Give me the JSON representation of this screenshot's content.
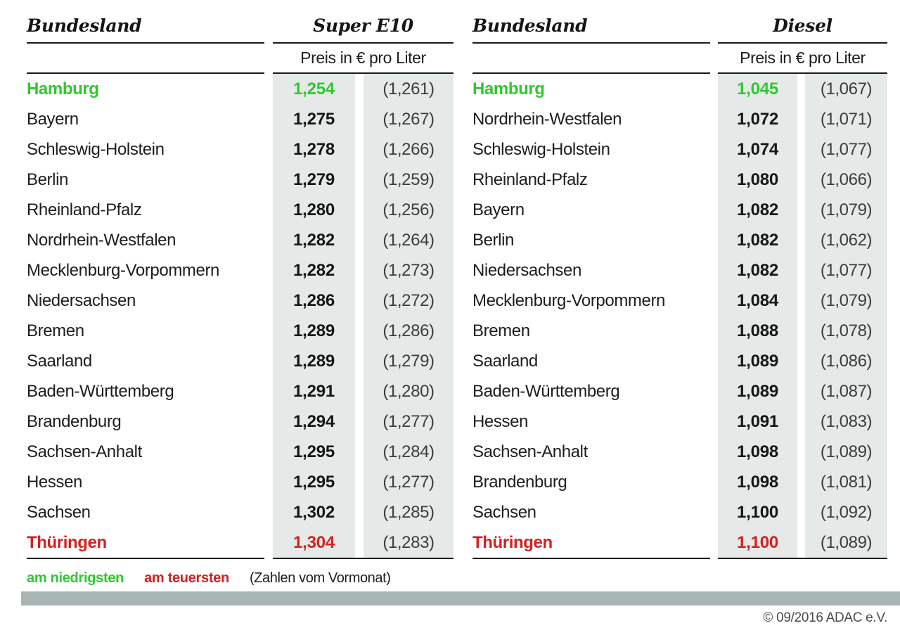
{
  "colors": {
    "green": "#2fc82f",
    "red": "#d32121",
    "band": "#e5eae8",
    "bar": "#a9b5b2",
    "text": "#1d1d1b"
  },
  "tables": [
    {
      "state_header": "Bundesland",
      "fuel_header": "Super E10",
      "unit_header": "Preis in € pro Liter",
      "rows": [
        {
          "state": "Hamburg",
          "price": "1,254",
          "prev": "(1,261)",
          "highlight": "lowest"
        },
        {
          "state": "Bayern",
          "price": "1,275",
          "prev": "(1,267)",
          "highlight": ""
        },
        {
          "state": "Schleswig-Holstein",
          "price": "1,278",
          "prev": "(1,266)",
          "highlight": ""
        },
        {
          "state": "Berlin",
          "price": "1,279",
          "prev": "(1,259)",
          "highlight": ""
        },
        {
          "state": "Rheinland-Pfalz",
          "price": "1,280",
          "prev": "(1,256)",
          "highlight": ""
        },
        {
          "state": "Nordrhein-Westfalen",
          "price": "1,282",
          "prev": "(1,264)",
          "highlight": ""
        },
        {
          "state": "Mecklenburg-Vorpommern",
          "price": "1,282",
          "prev": "(1,273)",
          "highlight": ""
        },
        {
          "state": "Niedersachsen",
          "price": "1,286",
          "prev": "(1,272)",
          "highlight": ""
        },
        {
          "state": "Bremen",
          "price": "1,289",
          "prev": "(1,286)",
          "highlight": ""
        },
        {
          "state": "Saarland",
          "price": "1,289",
          "prev": "(1,279)",
          "highlight": ""
        },
        {
          "state": "Baden-Württemberg",
          "price": "1,291",
          "prev": "(1,280)",
          "highlight": ""
        },
        {
          "state": "Brandenburg",
          "price": "1,294",
          "prev": "(1,277)",
          "highlight": ""
        },
        {
          "state": "Sachsen-Anhalt",
          "price": "1,295",
          "prev": "(1,284)",
          "highlight": ""
        },
        {
          "state": "Hessen",
          "price": "1,295",
          "prev": "(1,277)",
          "highlight": ""
        },
        {
          "state": "Sachsen",
          "price": "1,302",
          "prev": "(1,285)",
          "highlight": ""
        },
        {
          "state": "Thüringen",
          "price": "1,304",
          "prev": "(1,283)",
          "highlight": "highest"
        }
      ]
    },
    {
      "state_header": "Bundesland",
      "fuel_header": "Diesel",
      "unit_header": "Preis in € pro Liter",
      "rows": [
        {
          "state": "Hamburg",
          "price": "1,045",
          "prev": "(1,067)",
          "highlight": "lowest"
        },
        {
          "state": "Nordrhein-Westfalen",
          "price": "1,072",
          "prev": "(1,071)",
          "highlight": ""
        },
        {
          "state": "Schleswig-Holstein",
          "price": "1,074",
          "prev": "(1,077)",
          "highlight": ""
        },
        {
          "state": "Rheinland-Pfalz",
          "price": "1,080",
          "prev": "(1,066)",
          "highlight": ""
        },
        {
          "state": "Bayern",
          "price": "1,082",
          "prev": "(1,079)",
          "highlight": ""
        },
        {
          "state": "Berlin",
          "price": "1,082",
          "prev": "(1,062)",
          "highlight": ""
        },
        {
          "state": "Niedersachsen",
          "price": "1,082",
          "prev": "(1,077)",
          "highlight": ""
        },
        {
          "state": "Mecklenburg-Vorpommern",
          "price": "1,084",
          "prev": "(1,079)",
          "highlight": ""
        },
        {
          "state": "Bremen",
          "price": "1,088",
          "prev": "(1,078)",
          "highlight": ""
        },
        {
          "state": "Saarland",
          "price": "1,089",
          "prev": "(1,086)",
          "highlight": ""
        },
        {
          "state": "Baden-Württemberg",
          "price": "1,089",
          "prev": "(1,087)",
          "highlight": ""
        },
        {
          "state": "Hessen",
          "price": "1,091",
          "prev": "(1,083)",
          "highlight": ""
        },
        {
          "state": "Sachsen-Anhalt",
          "price": "1,098",
          "prev": "(1,089)",
          "highlight": ""
        },
        {
          "state": "Brandenburg",
          "price": "1,098",
          "prev": "(1,081)",
          "highlight": ""
        },
        {
          "state": "Sachsen",
          "price": "1,100",
          "prev": "(1,092)",
          "highlight": ""
        },
        {
          "state": "Thüringen",
          "price": "1,100",
          "prev": "(1,089)",
          "highlight": "highest"
        }
      ]
    }
  ],
  "legend": {
    "lowest": "am niedrigsten",
    "highest": "am teuersten",
    "note": "(Zahlen vom Vormonat)"
  },
  "footer": {
    "copyright": "© 09/2016 ADAC e.V."
  },
  "chart_data": [
    {
      "type": "table",
      "title": "Super E10",
      "columns": [
        "Bundesland",
        "Preis in € pro Liter",
        "Vormonat"
      ],
      "rows": [
        [
          "Hamburg",
          1.254,
          1.261
        ],
        [
          "Bayern",
          1.275,
          1.267
        ],
        [
          "Schleswig-Holstein",
          1.278,
          1.266
        ],
        [
          "Berlin",
          1.279,
          1.259
        ],
        [
          "Rheinland-Pfalz",
          1.28,
          1.256
        ],
        [
          "Nordrhein-Westfalen",
          1.282,
          1.264
        ],
        [
          "Mecklenburg-Vorpommern",
          1.282,
          1.273
        ],
        [
          "Niedersachsen",
          1.286,
          1.272
        ],
        [
          "Bremen",
          1.289,
          1.286
        ],
        [
          "Saarland",
          1.289,
          1.279
        ],
        [
          "Baden-Württemberg",
          1.291,
          1.28
        ],
        [
          "Brandenburg",
          1.294,
          1.277
        ],
        [
          "Sachsen-Anhalt",
          1.295,
          1.284
        ],
        [
          "Hessen",
          1.295,
          1.277
        ],
        [
          "Sachsen",
          1.302,
          1.285
        ],
        [
          "Thüringen",
          1.304,
          1.283
        ]
      ],
      "annotations": {
        "am_niedrigsten": "Hamburg",
        "am_teuersten": "Thüringen"
      }
    },
    {
      "type": "table",
      "title": "Diesel",
      "columns": [
        "Bundesland",
        "Preis in € pro Liter",
        "Vormonat"
      ],
      "rows": [
        [
          "Hamburg",
          1.045,
          1.067
        ],
        [
          "Nordrhein-Westfalen",
          1.072,
          1.071
        ],
        [
          "Schleswig-Holstein",
          1.074,
          1.077
        ],
        [
          "Rheinland-Pfalz",
          1.08,
          1.066
        ],
        [
          "Bayern",
          1.082,
          1.079
        ],
        [
          "Berlin",
          1.082,
          1.062
        ],
        [
          "Niedersachsen",
          1.082,
          1.077
        ],
        [
          "Mecklenburg-Vorpommern",
          1.084,
          1.079
        ],
        [
          "Bremen",
          1.088,
          1.078
        ],
        [
          "Saarland",
          1.089,
          1.086
        ],
        [
          "Baden-Württemberg",
          1.089,
          1.087
        ],
        [
          "Hessen",
          1.091,
          1.083
        ],
        [
          "Sachsen-Anhalt",
          1.098,
          1.089
        ],
        [
          "Brandenburg",
          1.098,
          1.081
        ],
        [
          "Sachsen",
          1.1,
          1.092
        ],
        [
          "Thüringen",
          1.1,
          1.089
        ]
      ],
      "annotations": {
        "am_niedrigsten": "Hamburg",
        "am_teuersten": "Thüringen"
      }
    }
  ]
}
